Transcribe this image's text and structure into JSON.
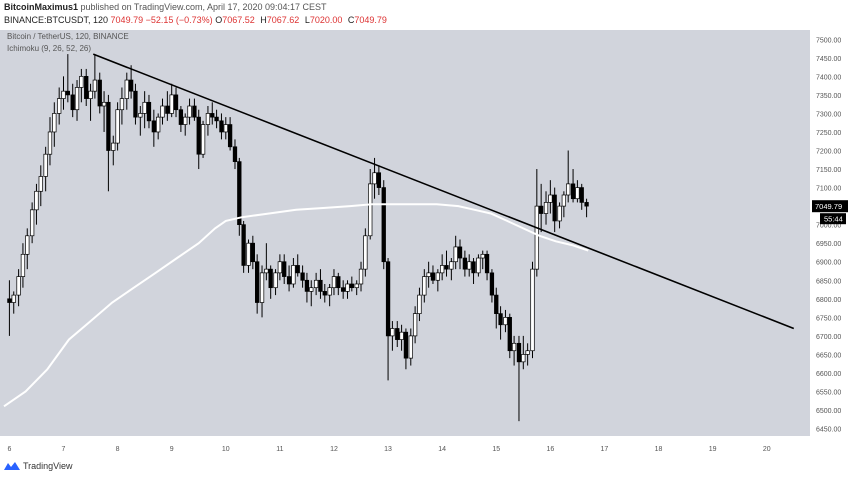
{
  "header": {
    "publisher": "BitcoinMaximus1",
    "published_text": "published on TradingView.com, April 17, 2020 09:04:17 CEST",
    "symbol": "BINANCE:BTCUSDT, 120",
    "last": "7049.79",
    "change": "−52.15 (−0.73%)",
    "ohlc": [
      {
        "k": "O",
        "v": "7067.52"
      },
      {
        "k": "H",
        "v": "7067.62"
      },
      {
        "k": "L",
        "v": "7020.00"
      },
      {
        "k": "C",
        "v": "7049.79"
      }
    ]
  },
  "legend": {
    "pair": "Bitcoin / TetherUS, 120, BINANCE",
    "indicator": "Ichimoku (9, 26, 52, 26)"
  },
  "price_tag": "7049.79",
  "countdown_tag": "55:44",
  "footer": {
    "brand": "TradingView"
  },
  "colors": {
    "background": "#d1d4dc",
    "candle": "#000000",
    "candle_hollow": "#ffffff",
    "trendline": "#000000",
    "indicator": "#ffffff"
  },
  "chart_data": {
    "type": "candlestick",
    "y_ticks": [
      "7500.00",
      "7450.00",
      "7400.00",
      "7350.00",
      "7300.00",
      "7250.00",
      "7200.00",
      "7150.00",
      "7100.00",
      "7050.00",
      "7000.00",
      "6950.00",
      "6900.00",
      "6850.00",
      "6800.00",
      "6750.00",
      "6700.00",
      "6650.00",
      "6600.00",
      "6550.00",
      "6500.00",
      "6450.00"
    ],
    "x_ticks": [
      "6",
      "7",
      "8",
      "9",
      "10",
      "11",
      "12",
      "13",
      "14",
      "15",
      "16",
      "17",
      "18",
      "19",
      "20"
    ],
    "ylim": [
      6430,
      7525
    ],
    "xlim": [
      5.9,
      20.8
    ],
    "candles": [
      [
        6.0,
        6800,
        6850,
        6700,
        6790
      ],
      [
        6.08,
        6790,
        6820,
        6760,
        6810
      ],
      [
        6.17,
        6810,
        6880,
        6780,
        6860
      ],
      [
        6.25,
        6860,
        6950,
        6830,
        6920
      ],
      [
        6.33,
        6920,
        6990,
        6880,
        6970
      ],
      [
        6.42,
        6970,
        7060,
        6950,
        7040
      ],
      [
        6.5,
        7040,
        7110,
        7000,
        7090
      ],
      [
        6.58,
        7090,
        7160,
        7050,
        7130
      ],
      [
        6.67,
        7130,
        7210,
        7090,
        7190
      ],
      [
        6.75,
        7190,
        7290,
        7160,
        7250
      ],
      [
        6.83,
        7250,
        7330,
        7210,
        7300
      ],
      [
        6.92,
        7300,
        7370,
        7270,
        7340
      ],
      [
        7.0,
        7340,
        7400,
        7310,
        7360
      ],
      [
        7.08,
        7360,
        7460,
        7330,
        7350
      ],
      [
        7.17,
        7350,
        7380,
        7290,
        7310
      ],
      [
        7.25,
        7310,
        7390,
        7280,
        7370
      ],
      [
        7.33,
        7370,
        7420,
        7330,
        7400
      ],
      [
        7.42,
        7400,
        7420,
        7320,
        7340
      ],
      [
        7.5,
        7340,
        7380,
        7280,
        7360
      ],
      [
        7.58,
        7360,
        7460,
        7340,
        7390
      ],
      [
        7.67,
        7390,
        7410,
        7300,
        7320
      ],
      [
        7.75,
        7320,
        7360,
        7250,
        7330
      ],
      [
        7.83,
        7330,
        7350,
        7090,
        7200
      ],
      [
        7.92,
        7200,
        7240,
        7160,
        7220
      ],
      [
        8.0,
        7220,
        7330,
        7200,
        7310
      ],
      [
        8.08,
        7310,
        7370,
        7270,
        7340
      ],
      [
        8.17,
        7340,
        7410,
        7310,
        7390
      ],
      [
        8.25,
        7390,
        7430,
        7340,
        7360
      ],
      [
        8.33,
        7360,
        7380,
        7270,
        7290
      ],
      [
        8.42,
        7290,
        7320,
        7240,
        7300
      ],
      [
        8.5,
        7300,
        7360,
        7260,
        7330
      ],
      [
        8.58,
        7330,
        7350,
        7260,
        7280
      ],
      [
        8.67,
        7280,
        7310,
        7210,
        7250
      ],
      [
        8.75,
        7250,
        7300,
        7230,
        7290
      ],
      [
        8.83,
        7290,
        7340,
        7270,
        7320
      ],
      [
        8.92,
        7320,
        7360,
        7280,
        7300
      ],
      [
        9.0,
        7300,
        7380,
        7290,
        7350
      ],
      [
        9.08,
        7350,
        7370,
        7290,
        7310
      ],
      [
        9.17,
        7310,
        7320,
        7250,
        7270
      ],
      [
        9.25,
        7270,
        7300,
        7240,
        7290
      ],
      [
        9.33,
        7290,
        7340,
        7270,
        7320
      ],
      [
        9.42,
        7320,
        7340,
        7280,
        7290
      ],
      [
        9.5,
        7290,
        7310,
        7150,
        7190
      ],
      [
        9.58,
        7190,
        7280,
        7180,
        7270
      ],
      [
        9.67,
        7270,
        7320,
        7240,
        7300
      ],
      [
        9.75,
        7300,
        7330,
        7270,
        7290
      ],
      [
        9.83,
        7290,
        7310,
        7260,
        7280
      ],
      [
        9.92,
        7280,
        7300,
        7230,
        7250
      ],
      [
        10.0,
        7250,
        7290,
        7230,
        7270
      ],
      [
        10.08,
        7270,
        7290,
        7200,
        7210
      ],
      [
        10.17,
        7210,
        7230,
        7150,
        7170
      ],
      [
        10.25,
        7170,
        7180,
        6970,
        7000
      ],
      [
        10.33,
        7000,
        7010,
        6870,
        6890
      ],
      [
        10.42,
        6890,
        6960,
        6870,
        6950
      ],
      [
        10.5,
        6950,
        6970,
        6880,
        6900
      ],
      [
        10.58,
        6900,
        6920,
        6760,
        6790
      ],
      [
        10.67,
        6790,
        6890,
        6750,
        6870
      ],
      [
        10.75,
        6870,
        6950,
        6850,
        6880
      ],
      [
        10.83,
        6880,
        6890,
        6800,
        6830
      ],
      [
        10.92,
        6830,
        6880,
        6810,
        6870
      ],
      [
        11.0,
        6870,
        6920,
        6850,
        6900
      ],
      [
        11.08,
        6900,
        6920,
        6840,
        6860
      ],
      [
        11.17,
        6860,
        6890,
        6820,
        6840
      ],
      [
        11.25,
        6840,
        6910,
        6830,
        6890
      ],
      [
        11.33,
        6890,
        6920,
        6860,
        6870
      ],
      [
        11.42,
        6870,
        6890,
        6830,
        6850
      ],
      [
        11.5,
        6850,
        6870,
        6790,
        6820
      ],
      [
        11.58,
        6820,
        6850,
        6780,
        6830
      ],
      [
        11.67,
        6830,
        6870,
        6810,
        6850
      ],
      [
        11.75,
        6850,
        6880,
        6800,
        6820
      ],
      [
        11.83,
        6820,
        6840,
        6790,
        6810
      ],
      [
        11.92,
        6810,
        6840,
        6780,
        6830
      ],
      [
        12.0,
        6830,
        6880,
        6810,
        6860
      ],
      [
        12.08,
        6860,
        6870,
        6810,
        6830
      ],
      [
        12.17,
        6830,
        6850,
        6800,
        6820
      ],
      [
        12.25,
        6820,
        6850,
        6800,
        6840
      ],
      [
        12.33,
        6840,
        6860,
        6820,
        6830
      ],
      [
        12.42,
        6830,
        6850,
        6810,
        6840
      ],
      [
        12.5,
        6840,
        6900,
        6820,
        6880
      ],
      [
        12.58,
        6880,
        6990,
        6860,
        6970
      ],
      [
        12.67,
        6970,
        7150,
        6960,
        7110
      ],
      [
        12.75,
        7110,
        7180,
        7070,
        7140
      ],
      [
        12.83,
        7140,
        7160,
        7080,
        7100
      ],
      [
        12.92,
        7100,
        7120,
        6880,
        6900
      ],
      [
        13.0,
        6900,
        6910,
        6580,
        6700
      ],
      [
        13.08,
        6700,
        6740,
        6660,
        6720
      ],
      [
        13.17,
        6720,
        6740,
        6670,
        6690
      ],
      [
        13.25,
        6690,
        6730,
        6660,
        6710
      ],
      [
        13.33,
        6710,
        6720,
        6610,
        6640
      ],
      [
        13.42,
        6640,
        6720,
        6620,
        6700
      ],
      [
        13.5,
        6700,
        6780,
        6680,
        6760
      ],
      [
        13.58,
        6760,
        6830,
        6740,
        6810
      ],
      [
        13.67,
        6810,
        6880,
        6790,
        6860
      ],
      [
        13.75,
        6860,
        6900,
        6830,
        6870
      ],
      [
        13.83,
        6870,
        6890,
        6840,
        6850
      ],
      [
        13.92,
        6850,
        6880,
        6820,
        6870
      ],
      [
        14.0,
        6870,
        6920,
        6850,
        6890
      ],
      [
        14.08,
        6890,
        6930,
        6860,
        6880
      ],
      [
        14.17,
        6880,
        6910,
        6850,
        6900
      ],
      [
        14.25,
        6900,
        6970,
        6880,
        6940
      ],
      [
        14.33,
        6940,
        6960,
        6880,
        6910
      ],
      [
        14.42,
        6910,
        6930,
        6860,
        6880
      ],
      [
        14.5,
        6880,
        6920,
        6860,
        6900
      ],
      [
        14.58,
        6900,
        6910,
        6840,
        6870
      ],
      [
        14.67,
        6870,
        6920,
        6860,
        6910
      ],
      [
        14.75,
        6910,
        6930,
        6880,
        6920
      ],
      [
        14.83,
        6920,
        6930,
        6850,
        6870
      ],
      [
        14.92,
        6870,
        6880,
        6790,
        6810
      ],
      [
        15.0,
        6810,
        6830,
        6720,
        6760
      ],
      [
        15.08,
        6760,
        6780,
        6690,
        6730
      ],
      [
        15.17,
        6730,
        6770,
        6710,
        6750
      ],
      [
        15.25,
        6750,
        6760,
        6640,
        6660
      ],
      [
        15.33,
        6660,
        6700,
        6620,
        6680
      ],
      [
        15.42,
        6680,
        6700,
        6470,
        6630
      ],
      [
        15.5,
        6630,
        6700,
        6610,
        6650
      ],
      [
        15.58,
        6650,
        6680,
        6620,
        6660
      ],
      [
        15.67,
        6660,
        6900,
        6640,
        6880
      ],
      [
        15.75,
        6880,
        7150,
        6860,
        7050
      ],
      [
        15.83,
        7050,
        7110,
        6980,
        7030
      ],
      [
        15.92,
        7030,
        7090,
        7000,
        7060
      ],
      [
        16.0,
        7060,
        7120,
        7030,
        7080
      ],
      [
        16.08,
        7080,
        7100,
        6980,
        7010
      ],
      [
        16.17,
        7010,
        7060,
        6990,
        7050
      ],
      [
        16.25,
        7050,
        7090,
        7020,
        7080
      ],
      [
        16.33,
        7080,
        7200,
        7060,
        7110
      ],
      [
        16.42,
        7110,
        7150,
        7060,
        7070
      ],
      [
        16.5,
        7070,
        7120,
        7060,
        7100
      ],
      [
        16.58,
        7100,
        7110,
        7040,
        7060
      ],
      [
        16.67,
        7060,
        7070,
        7020,
        7050
      ]
    ],
    "trendline": [
      [
        7.55,
        7460
      ],
      [
        20.5,
        6720
      ]
    ],
    "indicator_line": [
      [
        5.9,
        6510
      ],
      [
        6.3,
        6550
      ],
      [
        6.7,
        6610
      ],
      [
        7.1,
        6690
      ],
      [
        7.5,
        6740
      ],
      [
        7.9,
        6790
      ],
      [
        8.3,
        6830
      ],
      [
        8.7,
        6870
      ],
      [
        9.1,
        6910
      ],
      [
        9.5,
        6950
      ],
      [
        9.8,
        6990
      ],
      [
        10.0,
        7010
      ],
      [
        10.3,
        7020
      ],
      [
        10.8,
        7030
      ],
      [
        11.3,
        7040
      ],
      [
        11.8,
        7045
      ],
      [
        12.3,
        7050
      ],
      [
        12.7,
        7055
      ],
      [
        13.1,
        7055
      ],
      [
        13.5,
        7055
      ],
      [
        13.9,
        7055
      ],
      [
        14.3,
        7050
      ],
      [
        14.6,
        7040
      ],
      [
        14.9,
        7030
      ],
      [
        15.2,
        7010
      ],
      [
        15.5,
        6990
      ],
      [
        15.8,
        6970
      ],
      [
        16.1,
        6955
      ],
      [
        16.4,
        6945
      ],
      [
        16.7,
        6930
      ]
    ]
  }
}
